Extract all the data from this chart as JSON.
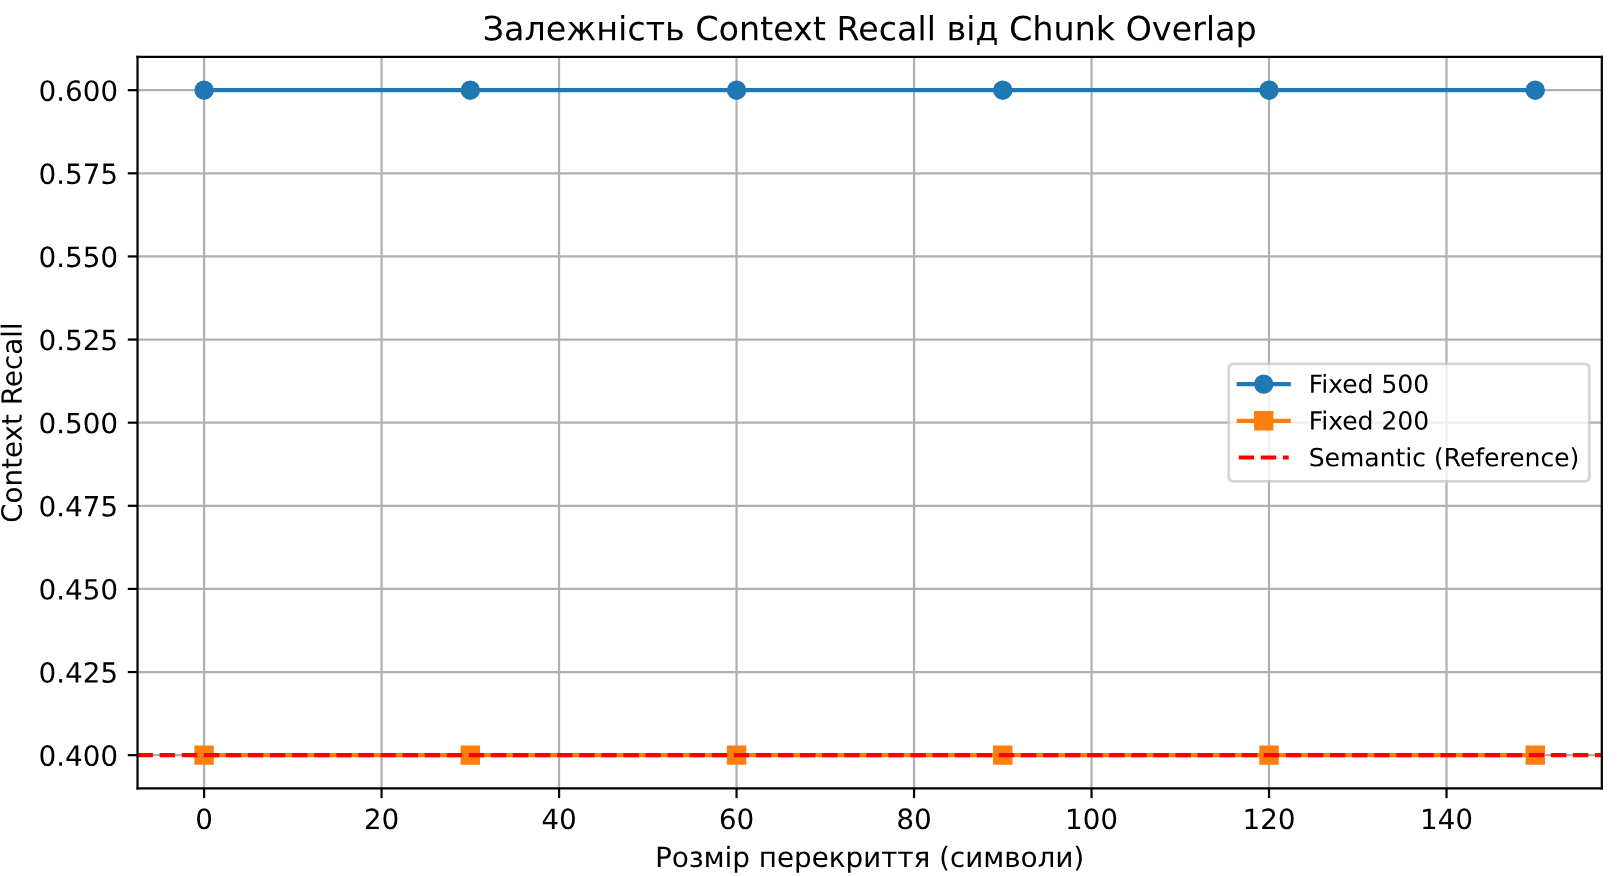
{
  "chart_data": {
    "type": "line",
    "title": "Залежність Context Recall від Chunk Overlap",
    "xlabel": "Розмір перекриття (символи)",
    "ylabel": "Context Recall",
    "x": [
      0,
      30,
      60,
      90,
      120,
      150
    ],
    "series": [
      {
        "name": "Fixed 500",
        "color": "#1f77b4",
        "values": [
          0.6,
          0.6,
          0.6,
          0.6,
          0.6,
          0.6
        ],
        "marker": "circle"
      },
      {
        "name": "Fixed 200",
        "color": "#ff7f0e",
        "values": [
          0.4,
          0.4,
          0.4,
          0.4,
          0.4,
          0.4
        ],
        "marker": "square"
      }
    ],
    "ref_lines": [
      {
        "axis": "y",
        "value": 0.4,
        "label": "Semantic (Reference)",
        "color": "#ff0000",
        "line_style": "dashed"
      }
    ],
    "xlim": [
      -7.5,
      157.5
    ],
    "ylim": [
      0.39,
      0.61
    ],
    "xticks": [
      0,
      20,
      40,
      60,
      80,
      100,
      120,
      140
    ],
    "yticks": [
      {
        "value": 0.4,
        "label": "0.400"
      },
      {
        "value": 0.425,
        "label": "0.425"
      },
      {
        "value": 0.45,
        "label": "0.450"
      },
      {
        "value": 0.475,
        "label": "0.475"
      },
      {
        "value": 0.5,
        "label": "0.500"
      },
      {
        "value": 0.525,
        "label": "0.525"
      },
      {
        "value": 0.55,
        "label": "0.550"
      },
      {
        "value": 0.575,
        "label": "0.575"
      },
      {
        "value": 0.6,
        "label": "0.600"
      }
    ],
    "grid": true,
    "legend": "right",
    "line_style": "solid"
  }
}
